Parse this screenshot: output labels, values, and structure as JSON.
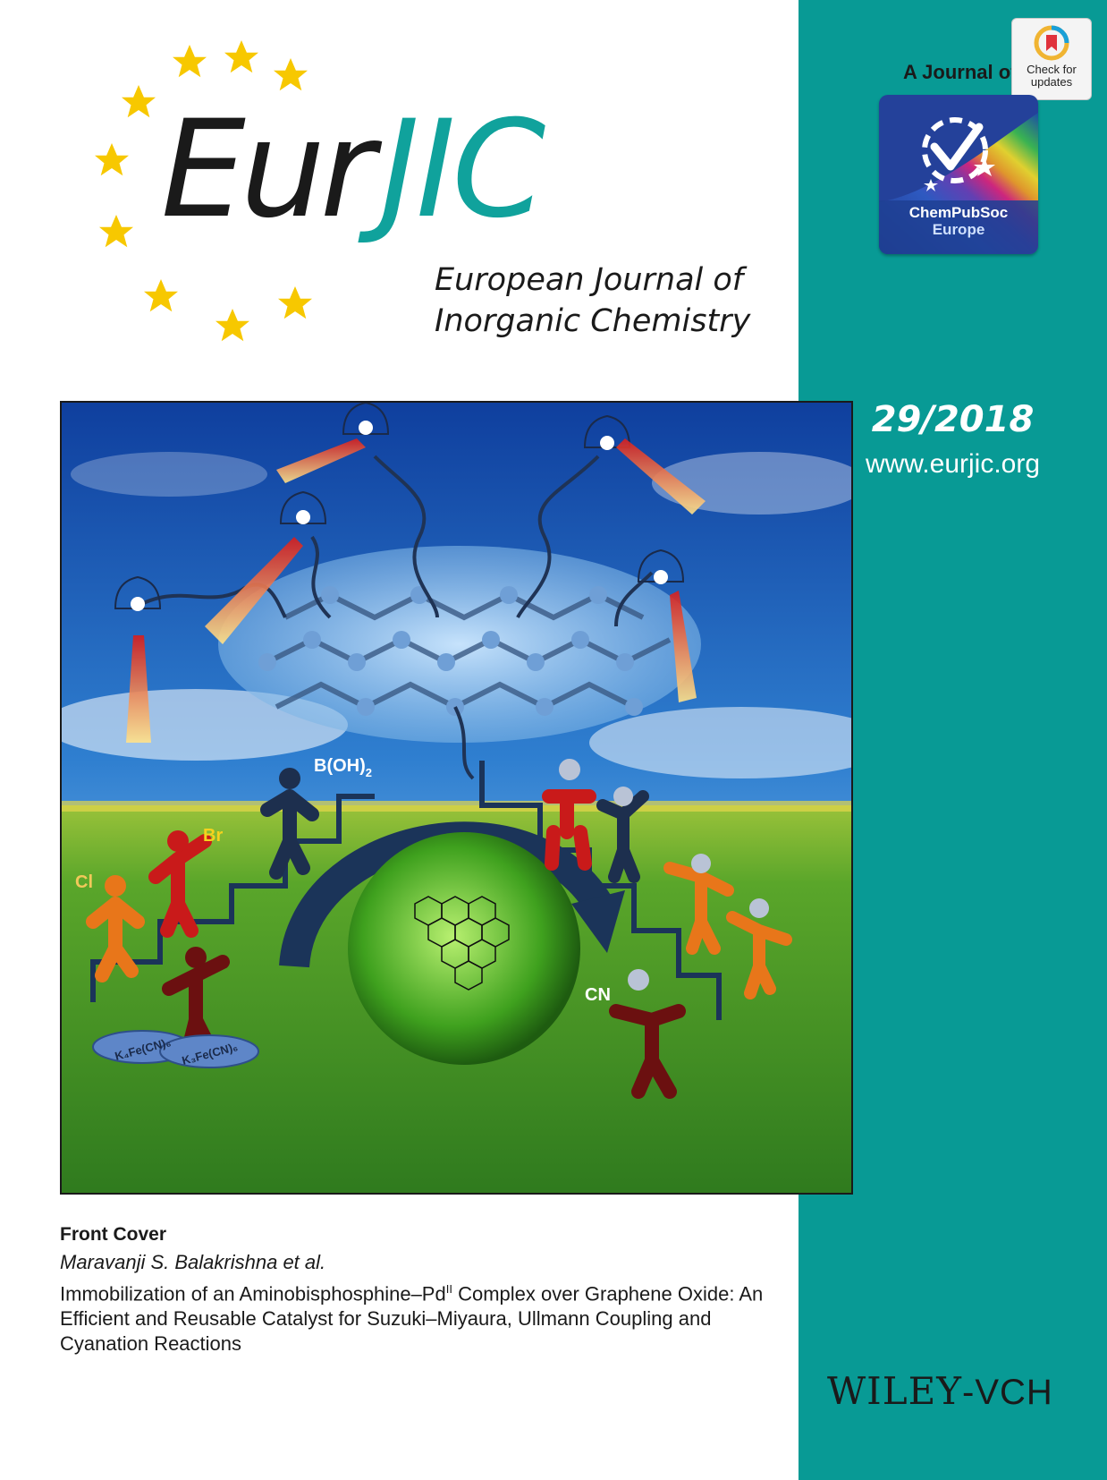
{
  "header": {
    "logo_eur": "Eur",
    "logo_jic": "JIC",
    "logo_subtitle_line1": "European Journal of",
    "logo_subtitle_line2": "Inorganic Chemistry"
  },
  "sidebar": {
    "journal_of": "A Journal of",
    "check_updates_line1": "Check for",
    "check_updates_line2": "updates",
    "society_line1": "ChemPubSoc",
    "society_line2": "Europe",
    "issue": "29/2018",
    "website": "www.eurjic.org"
  },
  "cover_art": {
    "labels": {
      "boronic": "B(OH)",
      "boronic_sub": "2",
      "bromo": "Br",
      "chloro": "Cl",
      "cyano": "CN",
      "reagent1": "K₄Fe(CN)₆",
      "reagent2": "K₃Fe(CN)₆"
    }
  },
  "article": {
    "section": "Front Cover",
    "authors": "Maravanji S. Balakrishna et al.",
    "title_part1": "Immobilization of an Aminobisphosphine–Pd",
    "title_sup": "II",
    "title_part2": " Complex over Graphene Oxide: An Efficient and Reusable Catalyst for Suzuki–Miyaura, Ullmann Coupling and Cyanation Reactions"
  },
  "publisher": {
    "name": "WILEY",
    "suffix": "-VCH"
  },
  "colors": {
    "teal": "#089a95",
    "logo_teal": "#10a29c",
    "star_yellow": "#f7c800"
  }
}
